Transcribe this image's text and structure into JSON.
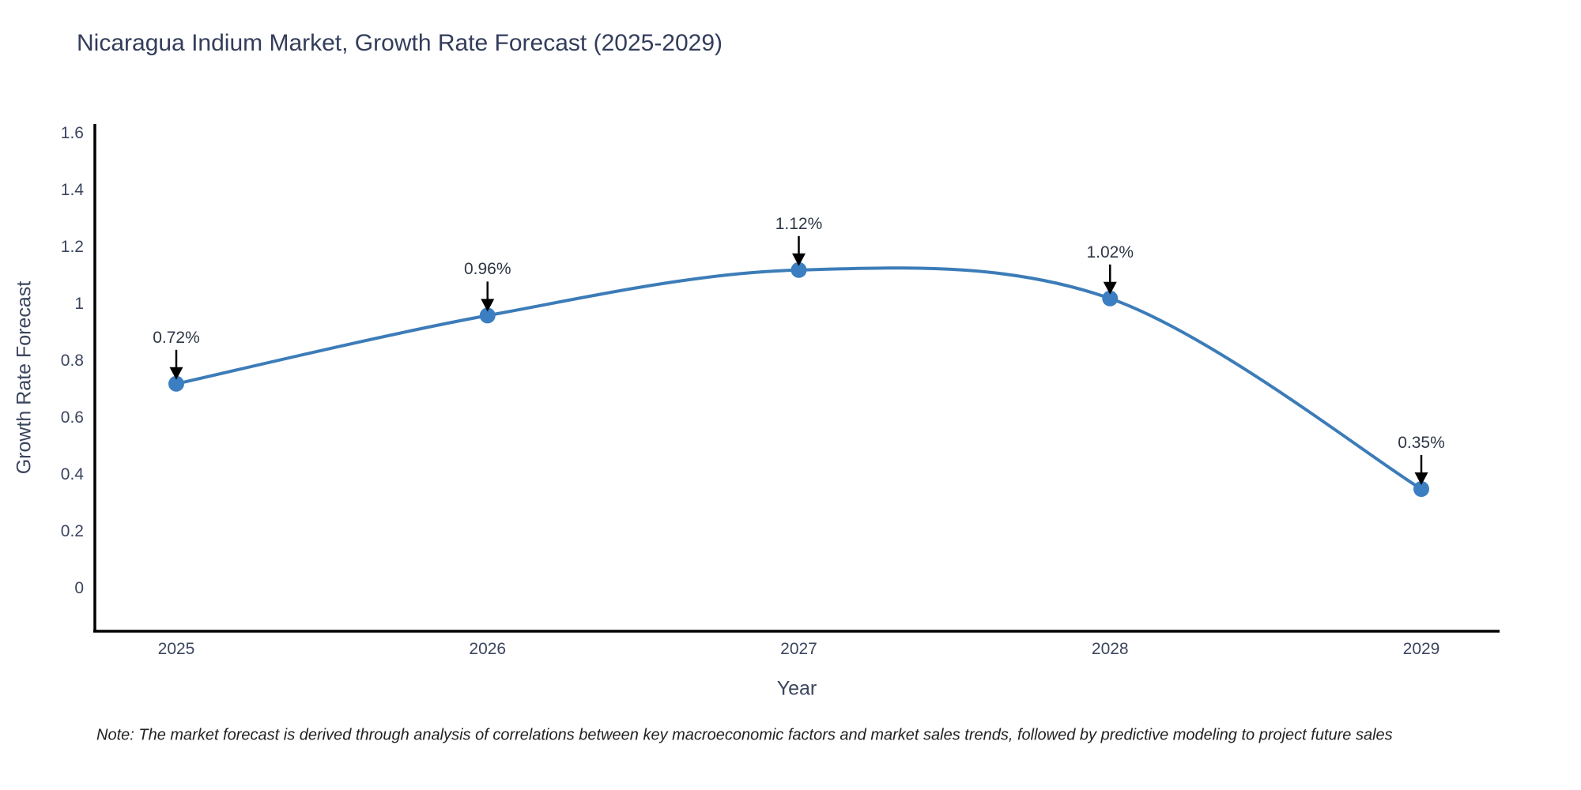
{
  "note": "Note: The market forecast is derived through analysis of correlations between key macroeconomic factors and market sales trends, followed by predictive modeling to project future sales",
  "chart_data": {
    "type": "line",
    "title": "Nicaragua Indium Market, Growth Rate Forecast (2025-2029)",
    "xlabel": "Year",
    "ylabel": "Growth Rate Forecast",
    "x": [
      2025,
      2026,
      2027,
      2028,
      2029
    ],
    "values": [
      0.72,
      0.96,
      1.12,
      1.02,
      0.35
    ],
    "point_labels": [
      "0.72%",
      "0.96%",
      "1.12%",
      "1.02%",
      "0.35%"
    ],
    "xticks": [
      "2025",
      "2026",
      "2027",
      "2028",
      "2029"
    ],
    "yticks": [
      "0",
      "0.2",
      "0.4",
      "0.6",
      "0.8",
      "1",
      "1.2",
      "1.4",
      "1.6"
    ],
    "ylim": [
      -0.15,
      1.63
    ],
    "grid": false,
    "legend": false,
    "line_shape": "spline",
    "line_color": "#3c7cb8",
    "marker_color": "#3b7ec1",
    "axis_color": "#000000",
    "text_color": "#3b455e",
    "annotation_color": "#2e3644"
  }
}
